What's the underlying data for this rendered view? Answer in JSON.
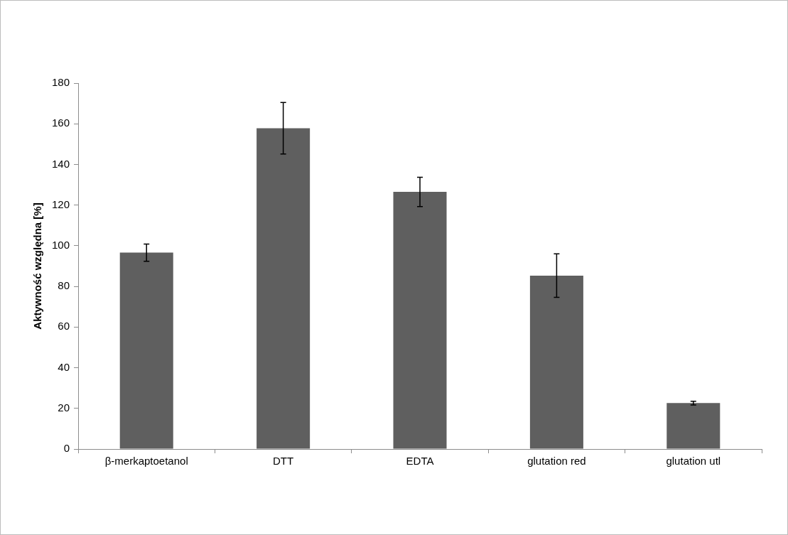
{
  "chart_data": {
    "type": "bar",
    "ylabel": "Aktywność względna [%]",
    "categories": [
      "β-merkaptoetanol",
      "DTT",
      "EDTA",
      "glutation red",
      "glutation utl"
    ],
    "values": [
      96.6,
      157.8,
      126.5,
      85.3,
      22.6
    ],
    "errors": [
      4.2,
      12.7,
      7.2,
      10.7,
      0.9
    ],
    "color": "#5f5f5f",
    "ylim": [
      0,
      180
    ],
    "yticks": [
      0,
      20,
      40,
      60,
      80,
      100,
      120,
      140,
      160,
      180
    ],
    "grid": false,
    "legend": false
  }
}
